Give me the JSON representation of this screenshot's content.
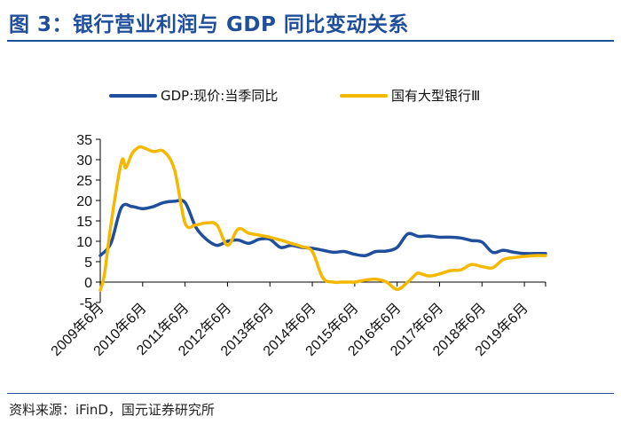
{
  "header": {
    "title": "图 3：银行营业利润与 GDP 同比变动关系"
  },
  "footer": {
    "source": "资料来源：iFinD，国元证券研究所"
  },
  "chart_data": {
    "type": "line",
    "title": "",
    "xlabel": "",
    "ylabel": "",
    "ylim": [
      -5,
      35
    ],
    "yticks": [
      -5,
      0,
      5,
      10,
      15,
      20,
      25,
      30,
      35
    ],
    "xlim": [
      2009.5,
      2020.0
    ],
    "x_tick_positions": [
      2009.5,
      2010.5,
      2011.5,
      2012.5,
      2013.5,
      2014.5,
      2015.5,
      2016.5,
      2017.5,
      2018.5,
      2019.5
    ],
    "categories": [
      "2009年6月",
      "2010年6月",
      "2011年6月",
      "2012年6月",
      "2013年6月",
      "2014年6月",
      "2015年6月",
      "2016年6月",
      "2017年6月",
      "2018年6月",
      "2019年6月"
    ],
    "legend_position": "top",
    "series": [
      {
        "name": "GDP:现价:当季同比",
        "color": "#1f4e9b",
        "x": [
          2009.5,
          2009.75,
          2010.0,
          2010.25,
          2010.5,
          2010.75,
          2011.0,
          2011.25,
          2011.5,
          2011.75,
          2012.0,
          2012.25,
          2012.5,
          2012.75,
          2013.0,
          2013.25,
          2013.5,
          2013.75,
          2014.0,
          2014.25,
          2014.5,
          2014.75,
          2015.0,
          2015.25,
          2015.5,
          2015.75,
          2016.0,
          2016.25,
          2016.5,
          2016.75,
          2017.0,
          2017.25,
          2017.5,
          2017.75,
          2018.0,
          2018.25,
          2018.5,
          2018.75,
          2019.0,
          2019.25,
          2019.5,
          2019.75,
          2020.0
        ],
        "values": [
          6.5,
          9.5,
          18.3,
          18.5,
          18.0,
          18.5,
          19.5,
          19.8,
          19.5,
          13.5,
          10.5,
          9.0,
          10.0,
          10.3,
          9.5,
          10.5,
          10.5,
          8.5,
          9.0,
          8.5,
          8.3,
          7.8,
          7.3,
          7.5,
          6.8,
          6.5,
          7.5,
          7.6,
          8.5,
          11.8,
          11.2,
          11.3,
          11.0,
          11.0,
          10.8,
          10.2,
          9.8,
          7.3,
          7.8,
          7.3,
          7.0,
          7.0,
          7.0
        ]
      },
      {
        "name": "国有大型银行Ⅲ",
        "color": "#f5b800",
        "x": [
          2009.5,
          2009.6,
          2009.75,
          2010.0,
          2010.1,
          2010.25,
          2010.4,
          2010.5,
          2010.75,
          2011.0,
          2011.25,
          2011.5,
          2011.75,
          2012.0,
          2012.25,
          2012.5,
          2012.75,
          2013.0,
          2013.25,
          2013.5,
          2013.75,
          2014.0,
          2014.25,
          2014.5,
          2014.75,
          2015.0,
          2015.2,
          2015.4,
          2015.5,
          2015.75,
          2016.0,
          2016.25,
          2016.5,
          2016.75,
          2016.9,
          2017.0,
          2017.25,
          2017.5,
          2017.75,
          2018.0,
          2018.25,
          2018.5,
          2018.75,
          2019.0,
          2019.25,
          2019.5,
          2019.75,
          2020.0
        ],
        "values": [
          -2.0,
          2.0,
          14.0,
          29.5,
          28.0,
          31.5,
          33.0,
          33.0,
          32.0,
          32.0,
          27.5,
          14.5,
          14.0,
          14.5,
          14.0,
          9.0,
          13.0,
          12.0,
          11.5,
          11.0,
          10.3,
          9.5,
          8.7,
          7.5,
          1.0,
          0.0,
          0.0,
          0.0,
          0.0,
          0.5,
          0.7,
          0.0,
          -1.8,
          0.0,
          1.5,
          2.2,
          1.5,
          2.0,
          2.8,
          3.0,
          4.3,
          3.8,
          3.5,
          5.5,
          6.0,
          6.3,
          6.5,
          6.5
        ]
      }
    ]
  }
}
